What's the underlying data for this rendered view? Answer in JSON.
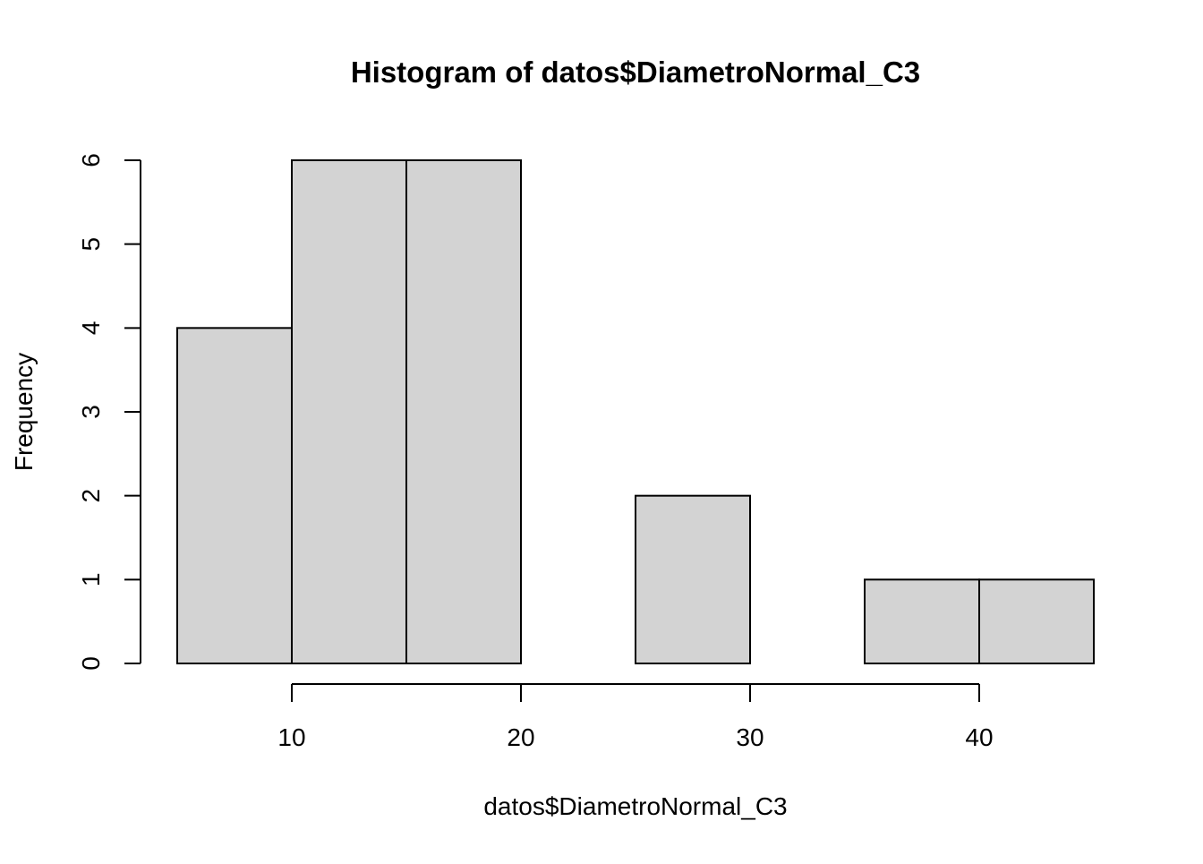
{
  "chart_data": {
    "type": "bar",
    "title": "Histogram of datos$DiametroNormal_C3",
    "xlabel": "datos$DiametroNormal_C3",
    "ylabel": "Frequency",
    "bins": [
      {
        "start": 5,
        "end": 10,
        "count": 4
      },
      {
        "start": 10,
        "end": 15,
        "count": 6
      },
      {
        "start": 15,
        "end": 20,
        "count": 6
      },
      {
        "start": 20,
        "end": 25,
        "count": 0
      },
      {
        "start": 25,
        "end": 30,
        "count": 2
      },
      {
        "start": 30,
        "end": 35,
        "count": 0
      },
      {
        "start": 35,
        "end": 40,
        "count": 1
      },
      {
        "start": 40,
        "end": 45,
        "count": 1
      }
    ],
    "xlim": [
      5,
      45
    ],
    "ylim": [
      0,
      6
    ],
    "x_ticks": [
      10,
      20,
      30,
      40
    ],
    "y_ticks": [
      0,
      1,
      2,
      3,
      4,
      5,
      6
    ],
    "bar_color": "#d3d3d3",
    "bar_border_color": "#000000",
    "grid": false,
    "legend": "none"
  }
}
